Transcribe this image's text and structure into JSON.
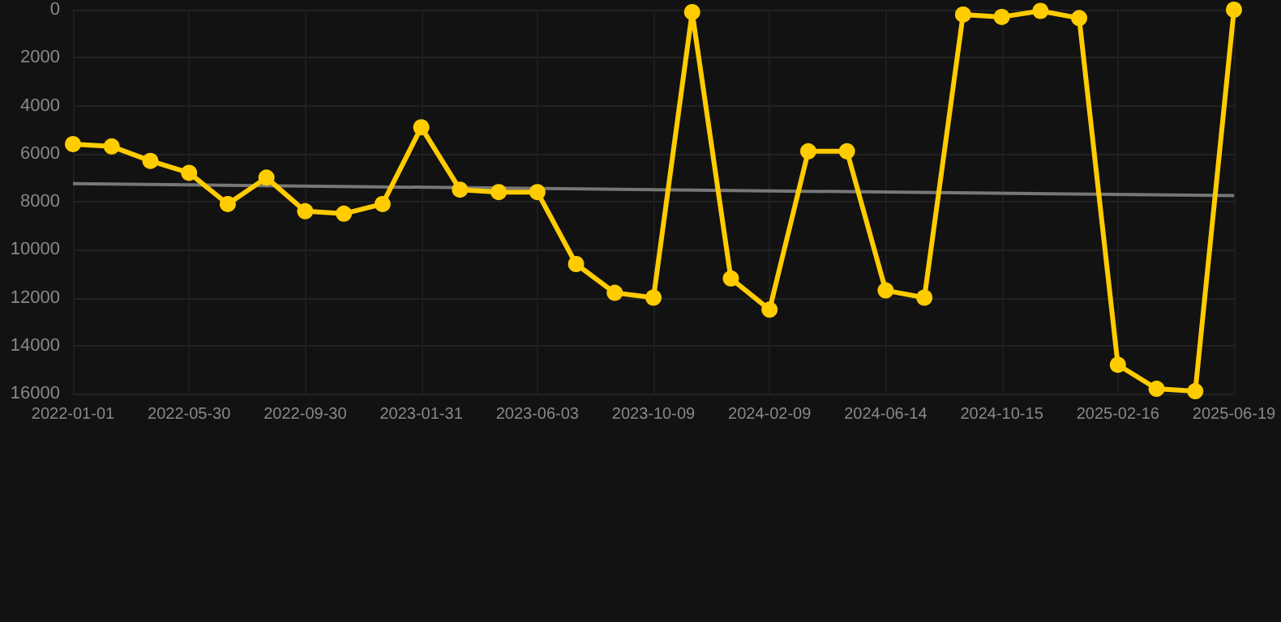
{
  "chart_data": {
    "type": "line",
    "categories": [
      "2022-01-01",
      null,
      null,
      "2022-05-30",
      null,
      null,
      "2022-09-30",
      null,
      null,
      "2023-01-31",
      null,
      null,
      "2023-06-03",
      null,
      null,
      "2023-10-09",
      null,
      null,
      "2024-02-09",
      null,
      null,
      "2024-06-14",
      null,
      null,
      "2024-10-15",
      null,
      null,
      "2025-02-16",
      null,
      null,
      "2025-06-19"
    ],
    "series": [
      {
        "color": "#ffcc00",
        "marker": "circle",
        "values": [
          5600,
          5700,
          6300,
          6800,
          8100,
          7000,
          8400,
          8500,
          8100,
          4900,
          7500,
          7600,
          7600,
          10600,
          11800,
          12000,
          100,
          11200,
          12500,
          5900,
          5900,
          11700,
          12000,
          200,
          300,
          50,
          350,
          14800,
          15800,
          15900,
          0
        ]
      },
      {
        "color": "#777777",
        "marker": "none",
        "values": [
          7250,
          null,
          null,
          null,
          null,
          null,
          null,
          null,
          null,
          null,
          null,
          null,
          null,
          null,
          null,
          null,
          null,
          null,
          null,
          null,
          null,
          null,
          null,
          null,
          null,
          null,
          null,
          null,
          null,
          null,
          7750
        ]
      }
    ],
    "ylim": [
      16000,
      0
    ],
    "yticks": [
      0,
      2000,
      4000,
      6000,
      8000,
      10000,
      12000,
      14000,
      16000
    ],
    "grid": true
  }
}
